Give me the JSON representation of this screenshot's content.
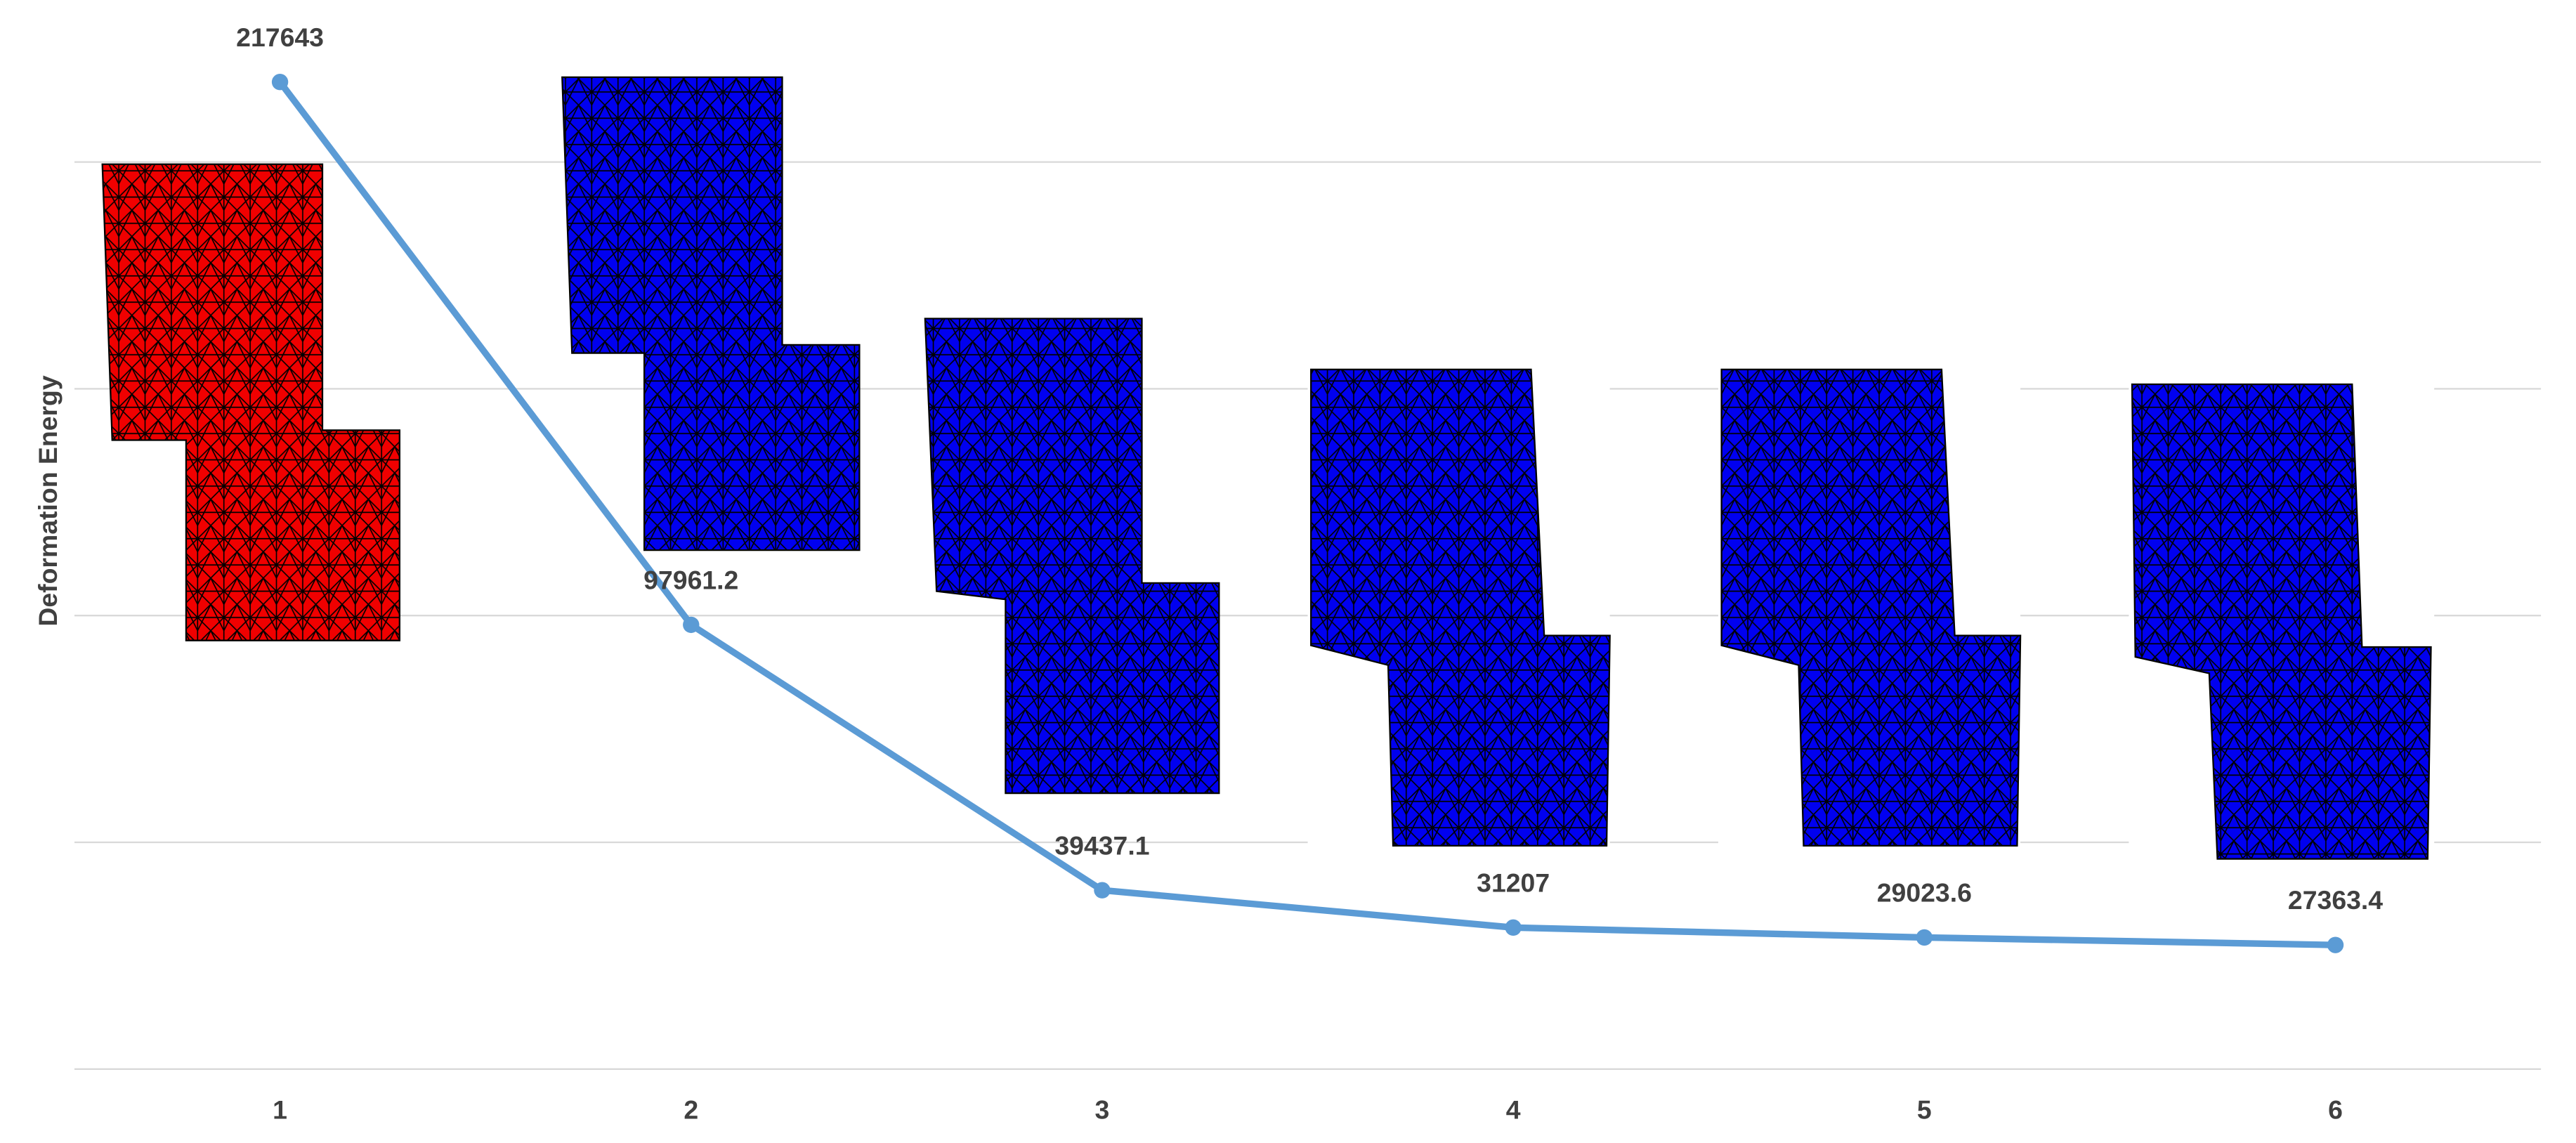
{
  "chart_data": {
    "type": "line",
    "y_label": "Deformation Energy",
    "categories": [
      "1",
      "2",
      "3",
      "4",
      "5",
      "6"
    ],
    "series": [
      {
        "name": "Deformation Energy",
        "color": "#5b9bd5",
        "values": [
          217643,
          97961.2,
          39437.1,
          31207,
          29023.6,
          27363.4
        ]
      }
    ],
    "ylim": [
      0,
      235000
    ],
    "yticks": [
      0,
      50000,
      100000,
      150000,
      200000
    ],
    "grid": true
  }
}
